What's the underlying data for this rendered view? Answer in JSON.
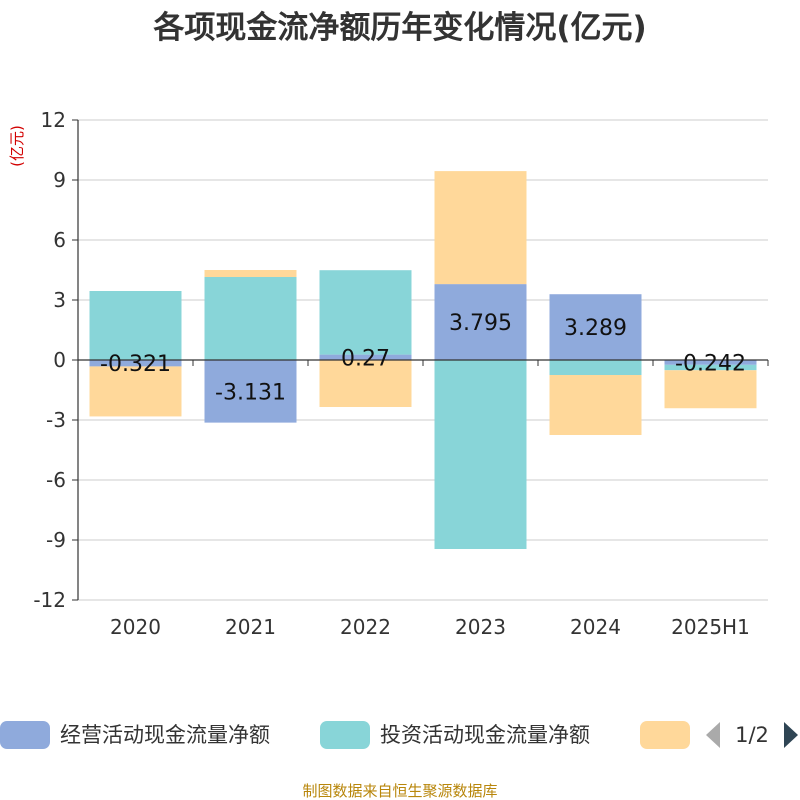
{
  "title": "各项现金流净额历年变化情况(亿元)",
  "source": "制图数据来自恒生聚源数据库",
  "chart_data": {
    "type": "bar",
    "stacked": true,
    "unit": "(亿元)",
    "categories": [
      "2020",
      "2021",
      "2022",
      "2023",
      "2024",
      "2025H1"
    ],
    "ylim": [
      -12,
      12
    ],
    "yticks": [
      12,
      9,
      6,
      3,
      0,
      -3,
      -6,
      -9,
      -12
    ],
    "grid": true,
    "legend_position": "bottom",
    "series": [
      {
        "name": "经营活动现金流量净额",
        "color": "#8faadc",
        "values": [
          -0.321,
          -3.131,
          0.27,
          3.795,
          3.289,
          -0.242
        ],
        "labels": [
          "-0.321",
          "-3.131",
          "0.27",
          "3.795",
          "3.289",
          "-0.242"
        ]
      },
      {
        "name": "投资活动现金流量净额",
        "color": "#88d5d8",
        "values": [
          3.45,
          4.15,
          4.22,
          -9.45,
          -0.75,
          -0.27
        ]
      },
      {
        "name": "",
        "color": "#ffd89a",
        "values": [
          -2.5,
          0.35,
          -2.35,
          5.65,
          -3.0,
          -1.9
        ]
      }
    ]
  },
  "legend_pager": {
    "text": "1/2"
  }
}
